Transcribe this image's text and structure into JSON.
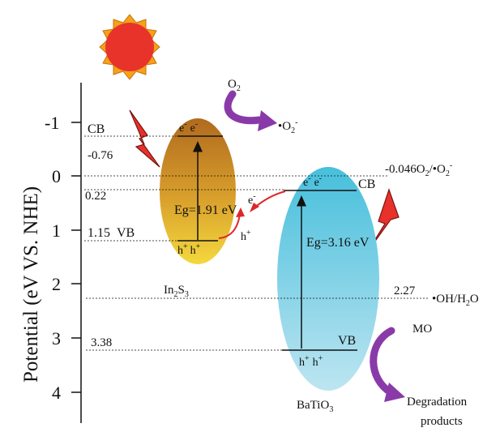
{
  "axis": {
    "title": "Potential (eV VS. NHE)",
    "ticks": [
      "-1",
      "0",
      "1",
      "2",
      "3",
      "4"
    ]
  },
  "in2s3": {
    "name_main": "In",
    "name_sub1": "2",
    "name_mid": "S",
    "name_sub2": "3",
    "cb_label": "CB",
    "vb_label": "VB",
    "cb_value": "-0.76",
    "vb_value": "1.15",
    "band_gap": "Eg=1.91 eV",
    "electrons": "e",
    "holes": "h"
  },
  "batio3": {
    "name_main": "BaTiO",
    "name_sub": "3",
    "cb_label": "CB",
    "vb_label": "VB",
    "cb_value": "0.22",
    "vb_value": "3.38",
    "band_gap": "Eg=3.16 eV",
    "electrons": "e",
    "holes": "h"
  },
  "transfer": {
    "electron": "e",
    "hole": "h"
  },
  "redox": {
    "o2_value": "-0.046",
    "o2_couple_main": "O",
    "o2_couple_sub": "2",
    "o2_couple_rest": "/•O",
    "o2_couple_sub2": "2",
    "oh_value": "2.27",
    "oh_couple_main": "•OH/H",
    "oh_couple_sub": "2",
    "oh_couple_rest": "O"
  },
  "reactions": {
    "o2_in_main": "O",
    "o2_in_sub": "2",
    "o2_out_main": "•O",
    "o2_out_sub": "2",
    "mo": "MO",
    "products_line1": "Degradation",
    "products_line2": "products"
  },
  "signs": {
    "minus": "-",
    "plus": "+"
  },
  "colors": {
    "sun": "#e8332a",
    "sun_rays": "#f5a218",
    "lightning_fill": "#e8312a",
    "in2s3_top": "#b5701f",
    "in2s3_bottom": "#f2d23c",
    "batio3_top": "#4fc0dc",
    "batio3_bottom": "#b5e2ef",
    "reaction_arrow": "#8a3aa8",
    "transfer_arrow": "#e0262a"
  }
}
